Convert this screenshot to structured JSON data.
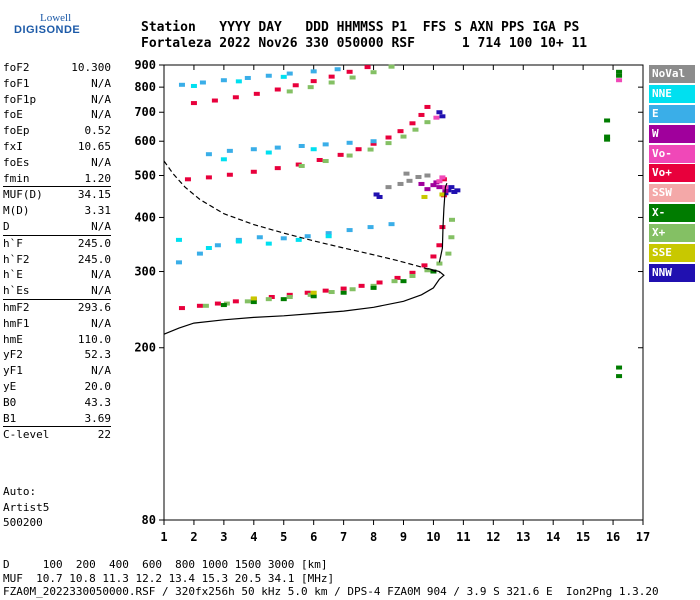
{
  "logo": {
    "line1": "Lowell",
    "line2": "DIGISONDE"
  },
  "header": {
    "line1": "Station   YYYY DAY   DDD HHMMSS P1  FFS S AXN PPS IGA PS",
    "line2": "Fortaleza 2022 Nov26 330 050000 RSF      1 714 100 10+ 11"
  },
  "parameters": [
    {
      "k": "foF2",
      "v": "10.300"
    },
    {
      "k": "foF1",
      "v": "N/A"
    },
    {
      "k": "foF1p",
      "v": "N/A"
    },
    {
      "k": "foE",
      "v": "N/A"
    },
    {
      "k": "foEp",
      "v": "0.52"
    },
    {
      "k": "fxI",
      "v": "10.65"
    },
    {
      "k": "foEs",
      "v": "N/A"
    },
    {
      "k": "fmin",
      "v": "1.20",
      "sep": false
    },
    {
      "k": "MUF(D)",
      "v": "34.15",
      "sep": true
    },
    {
      "k": "M(D)",
      "v": "3.31"
    },
    {
      "k": "D",
      "v": "N/A"
    },
    {
      "k": "h`F",
      "v": "245.0",
      "sep": true
    },
    {
      "k": "h`F2",
      "v": "245.0"
    },
    {
      "k": "h`E",
      "v": "N/A"
    },
    {
      "k": "h`Es",
      "v": "N/A"
    },
    {
      "k": "hmF2",
      "v": "293.6",
      "sep": true
    },
    {
      "k": "hmF1",
      "v": "N/A"
    },
    {
      "k": "hmE",
      "v": "110.0"
    },
    {
      "k": "yF2",
      "v": "52.3"
    },
    {
      "k": "yF1",
      "v": "N/A"
    },
    {
      "k": "yE",
      "v": "20.0"
    },
    {
      "k": "B0",
      "v": "43.3"
    },
    {
      "k": "B1",
      "v": "3.69"
    },
    {
      "k": "C-level",
      "v": "22",
      "sep": true
    }
  ],
  "auto": {
    "l1": "Auto:",
    "l2": "Artist5",
    "l3": "500200"
  },
  "footer": {
    "line1": "D     100  200  400  600  800 1000 1500 3000 [km]",
    "line2": "MUF  10.7 10.8 11.3 12.2 13.4 15.3 20.5 34.1 [MHz]",
    "line3": "FZA0M_2022330050000.RSF / 320fx256h 50 kHz 5.0 km / DPS-4 FZA0M 904 / 3.9 S 321.6 E  Ion2Png 1.3.20"
  },
  "legend": [
    {
      "label": "NoVal",
      "color": "#8c8c8c"
    },
    {
      "label": "NNE",
      "color": "#00e0f0"
    },
    {
      "label": "E",
      "color": "#3aaee8"
    },
    {
      "label": "W",
      "color": "#a0009c"
    },
    {
      "label": "Vo-",
      "color": "#f048b8"
    },
    {
      "label": "Vo+",
      "color": "#e8003c"
    },
    {
      "label": "SSW",
      "color": "#f4a8a8"
    },
    {
      "label": "X-",
      "color": "#007c00"
    },
    {
      "label": "X+",
      "color": "#84c064"
    },
    {
      "label": "SSE",
      "color": "#c8c800"
    },
    {
      "label": "NNW",
      "color": "#2010b0"
    }
  ],
  "chart_data": {
    "type": "scatter",
    "title": "",
    "xlabel": "",
    "ylabel": "",
    "xlim": [
      1,
      17
    ],
    "ylim": [
      80,
      900
    ],
    "yscale": "log",
    "x_ticks": [
      1,
      2,
      3,
      4,
      5,
      6,
      7,
      8,
      9,
      10,
      11,
      12,
      13,
      14,
      15,
      16,
      17
    ],
    "y_ticks": [
      80,
      200,
      300,
      400,
      500,
      600,
      700,
      800,
      900
    ],
    "series": [
      {
        "name": "Vo+",
        "color": "#e8003c",
        "points": [
          [
            1.6,
            247
          ],
          [
            2.2,
            250
          ],
          [
            2.8,
            253
          ],
          [
            3.4,
            256
          ],
          [
            4.0,
            259
          ],
          [
            4.6,
            262
          ],
          [
            5.2,
            265
          ],
          [
            5.8,
            268
          ],
          [
            6.4,
            271
          ],
          [
            7.0,
            274
          ],
          [
            7.6,
            278
          ],
          [
            8.2,
            283
          ],
          [
            8.8,
            290
          ],
          [
            9.3,
            298
          ],
          [
            9.7,
            310
          ],
          [
            10.0,
            325
          ],
          [
            10.2,
            345
          ],
          [
            10.3,
            380
          ],
          [
            10.35,
            450
          ],
          [
            10.35,
            490
          ],
          [
            1.8,
            490
          ],
          [
            2.5,
            495
          ],
          [
            3.2,
            502
          ],
          [
            4.0,
            510
          ],
          [
            4.8,
            520
          ],
          [
            5.5,
            530
          ],
          [
            6.2,
            543
          ],
          [
            6.9,
            558
          ],
          [
            7.5,
            575
          ],
          [
            8.0,
            592
          ],
          [
            8.5,
            612
          ],
          [
            8.9,
            633
          ],
          [
            9.3,
            660
          ],
          [
            9.6,
            690
          ],
          [
            9.8,
            720
          ],
          [
            2.0,
            735
          ],
          [
            2.7,
            745
          ],
          [
            3.4,
            758
          ],
          [
            4.1,
            772
          ],
          [
            4.8,
            790
          ],
          [
            5.4,
            808
          ],
          [
            6.0,
            826
          ],
          [
            6.6,
            846
          ],
          [
            7.2,
            868
          ],
          [
            7.8,
            890
          ]
        ]
      },
      {
        "name": "X+",
        "color": "#84c064",
        "points": [
          [
            2.4,
            250
          ],
          [
            3.1,
            253
          ],
          [
            3.8,
            256
          ],
          [
            4.5,
            259
          ],
          [
            5.2,
            262
          ],
          [
            5.9,
            265
          ],
          [
            6.6,
            269
          ],
          [
            7.3,
            273
          ],
          [
            8.0,
            278
          ],
          [
            8.7,
            285
          ],
          [
            9.3,
            293
          ],
          [
            9.8,
            302
          ],
          [
            10.2,
            313
          ],
          [
            10.5,
            330
          ],
          [
            10.6,
            360
          ],
          [
            10.62,
            395
          ],
          [
            5.6,
            526
          ],
          [
            6.4,
            540
          ],
          [
            7.2,
            556
          ],
          [
            7.9,
            574
          ],
          [
            8.5,
            594
          ],
          [
            9.0,
            615
          ],
          [
            9.4,
            638
          ],
          [
            9.8,
            664
          ],
          [
            5.2,
            782
          ],
          [
            5.9,
            800
          ],
          [
            6.6,
            820
          ],
          [
            7.3,
            842
          ],
          [
            8.0,
            866
          ],
          [
            8.6,
            892
          ]
        ]
      },
      {
        "name": "E",
        "color": "#3aaee8",
        "points": [
          [
            1.5,
            315
          ],
          [
            2.2,
            330
          ],
          [
            2.8,
            345
          ],
          [
            3.5,
            355
          ],
          [
            4.2,
            360
          ],
          [
            5.0,
            358
          ],
          [
            5.8,
            362
          ],
          [
            6.5,
            368
          ],
          [
            7.2,
            374
          ],
          [
            7.9,
            380
          ],
          [
            8.6,
            386
          ],
          [
            2.5,
            560
          ],
          [
            3.2,
            570
          ],
          [
            4.0,
            575
          ],
          [
            4.8,
            580
          ],
          [
            5.6,
            585
          ],
          [
            6.4,
            590
          ],
          [
            7.2,
            595
          ],
          [
            8.0,
            600
          ],
          [
            1.6,
            810
          ],
          [
            2.3,
            820
          ],
          [
            3.0,
            830
          ],
          [
            3.8,
            840
          ],
          [
            4.5,
            850
          ],
          [
            5.2,
            860
          ],
          [
            6.0,
            870
          ],
          [
            6.8,
            880
          ]
        ]
      },
      {
        "name": "NNE",
        "color": "#00e0f0",
        "points": [
          [
            1.5,
            355
          ],
          [
            2.5,
            340
          ],
          [
            3.5,
            352
          ],
          [
            4.5,
            348
          ],
          [
            5.5,
            355
          ],
          [
            6.5,
            362
          ],
          [
            3.0,
            545
          ],
          [
            4.5,
            565
          ],
          [
            6.0,
            575
          ],
          [
            2.0,
            805
          ],
          [
            3.5,
            825
          ],
          [
            5.0,
            845
          ]
        ]
      },
      {
        "name": "X-",
        "color": "#007c00",
        "points": [
          [
            3.0,
            251
          ],
          [
            4.0,
            255
          ],
          [
            5.0,
            259
          ],
          [
            6.0,
            263
          ],
          [
            7.0,
            268
          ],
          [
            8.0,
            275
          ],
          [
            9.0,
            285
          ],
          [
            10.0,
            300
          ],
          [
            15.8,
            605
          ],
          [
            15.8,
            615
          ],
          [
            15.8,
            670
          ],
          [
            16.2,
            850
          ],
          [
            16.2,
            868
          ],
          [
            16.2,
            172
          ],
          [
            16.2,
            180
          ]
        ]
      },
      {
        "name": "NNW",
        "color": "#2010b0",
        "points": [
          [
            10.4,
            455
          ],
          [
            10.5,
            462
          ],
          [
            10.6,
            470
          ],
          [
            10.7,
            458
          ],
          [
            10.8,
            462
          ],
          [
            10.3,
            685
          ],
          [
            10.2,
            700
          ],
          [
            8.2,
            446
          ],
          [
            8.1,
            452
          ]
        ]
      },
      {
        "name": "W",
        "color": "#a0009c",
        "points": [
          [
            9.8,
            465
          ],
          [
            10.0,
            475
          ],
          [
            10.2,
            470
          ],
          [
            10.1,
            482
          ],
          [
            10.4,
            460
          ],
          [
            9.6,
            478
          ]
        ]
      },
      {
        "name": "Vo-",
        "color": "#f048b8",
        "points": [
          [
            10.2,
            485
          ],
          [
            10.3,
            495
          ],
          [
            10.4,
            470
          ],
          [
            16.2,
            830
          ],
          [
            10.1,
            680
          ]
        ]
      },
      {
        "name": "SSE",
        "color": "#c8c800",
        "points": [
          [
            9.7,
            446
          ],
          [
            10.3,
            452
          ],
          [
            4.0,
            260
          ],
          [
            6.0,
            268
          ]
        ]
      },
      {
        "name": "NoVal",
        "color": "#8c8c8c",
        "points": [
          [
            8.5,
            470
          ],
          [
            8.9,
            478
          ],
          [
            9.2,
            486
          ],
          [
            9.5,
            496
          ],
          [
            9.1,
            505
          ],
          [
            9.8,
            500
          ]
        ]
      }
    ],
    "lines": [
      {
        "name": "",
        "style": "dashed",
        "color": "#000000",
        "points": [
          [
            1.0,
            540
          ],
          [
            1.3,
            505
          ],
          [
            1.7,
            470
          ],
          [
            2.2,
            440
          ],
          [
            3.0,
            408
          ],
          [
            4.0,
            385
          ],
          [
            5.0,
            368
          ],
          [
            6.0,
            353
          ],
          [
            7.0,
            340
          ],
          [
            8.0,
            328
          ],
          [
            8.8,
            318
          ],
          [
            9.4,
            310
          ],
          [
            9.9,
            303
          ],
          [
            10.2,
            298
          ]
        ]
      },
      {
        "name": "",
        "style": "solid",
        "color": "#000000",
        "points": [
          [
            1.0,
            215
          ],
          [
            1.5,
            222
          ],
          [
            2.0,
            228
          ],
          [
            3.0,
            232
          ],
          [
            4.0,
            235
          ],
          [
            5.0,
            237
          ],
          [
            6.0,
            240
          ],
          [
            7.0,
            243
          ],
          [
            8.0,
            248
          ],
          [
            9.0,
            256
          ],
          [
            9.6,
            265
          ],
          [
            10.0,
            275
          ],
          [
            10.2,
            288
          ],
          [
            10.35,
            294
          ],
          [
            10.2,
            300
          ],
          [
            9.8,
            305
          ]
        ]
      },
      {
        "name": "",
        "style": "solid",
        "color": "#000000",
        "points": [
          [
            10.2,
            315
          ],
          [
            10.3,
            340
          ],
          [
            10.32,
            380
          ],
          [
            10.35,
            420
          ],
          [
            10.4,
            470
          ],
          [
            10.45,
            480
          ]
        ]
      }
    ]
  }
}
